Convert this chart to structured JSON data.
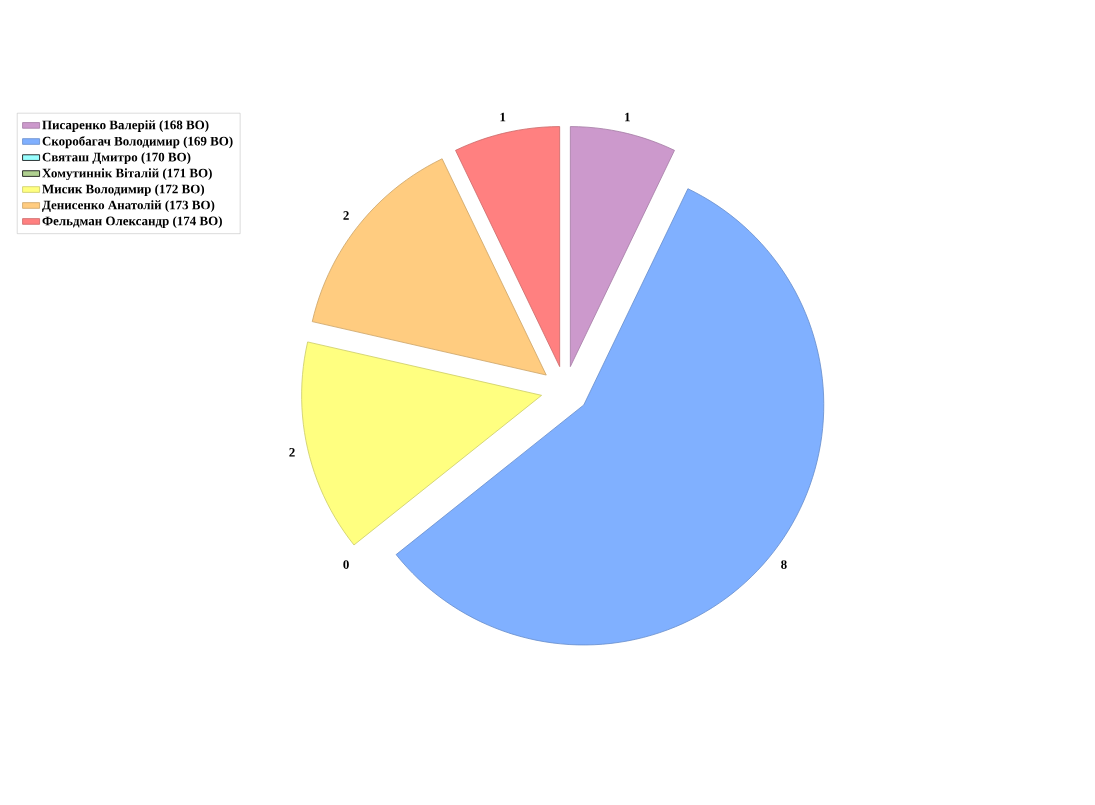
{
  "chart_data": {
    "type": "pie",
    "categories": [
      "Писаренко Валерій (168 ВО)",
      "Скоробагач Володимир (169 ВО)",
      "Святаш Дмитро (170 ВО)",
      "Хомутиннік Віталій (171 ВО)",
      "Мисик Володимир (172 ВО)",
      "Денисенко Анатолій (173 ВО)",
      "Фельдман Олександр (174 ВО)"
    ],
    "values": [
      1,
      8,
      0,
      0,
      2,
      2,
      1
    ],
    "colors": [
      "#cc99cc",
      "#80b0ff",
      "#99ffff",
      "#b0d090",
      "#ffff80",
      "#ffcc80",
      "#ff8080"
    ],
    "value_labels": [
      "1",
      "8",
      "0",
      null,
      "2",
      "2",
      "1"
    ],
    "legend": "top left"
  }
}
